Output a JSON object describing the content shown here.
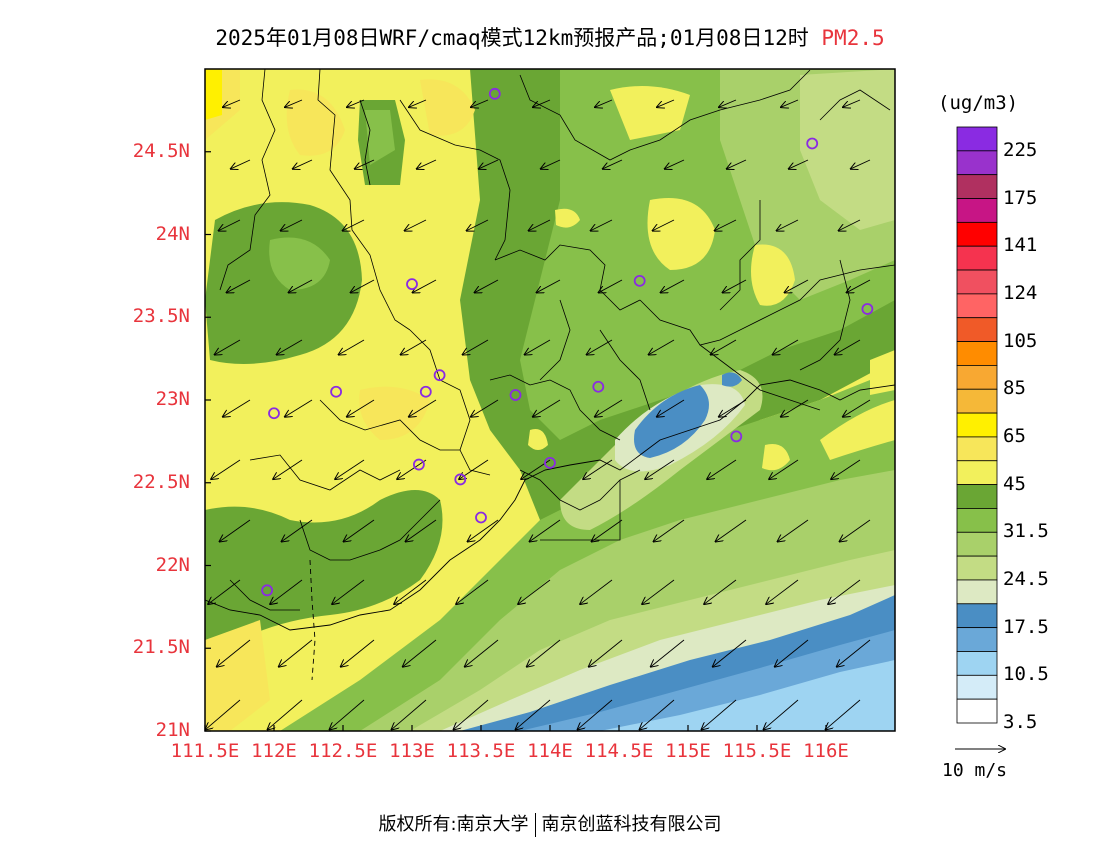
{
  "title": {
    "main": "2025年01月08日WRF/cmaq模式12km预报产品;01月08日12时",
    "pollutant": "PM2.5"
  },
  "axes": {
    "lat_ticks": [
      "24.5N",
      "24N",
      "23.5N",
      "23N",
      "22.5N",
      "22N",
      "21.5N",
      "21N"
    ],
    "lat_values": [
      24.5,
      24,
      23.5,
      23,
      22.5,
      22,
      21.5,
      21
    ],
    "lon_ticks": [
      "111.5E",
      "112E",
      "112.5E",
      "113E",
      "113.5E",
      "114E",
      "114.5E",
      "115E",
      "115.5E",
      "116E"
    ],
    "lon_values": [
      111.5,
      112,
      112.5,
      113,
      113.5,
      114,
      114.5,
      115,
      115.5,
      116
    ],
    "lat_range": [
      21,
      25.0
    ],
    "lon_range": [
      111.5,
      116.5
    ]
  },
  "colorbar": {
    "unit": "(ug/m3)",
    "labels": [
      "225",
      "175",
      "141",
      "124",
      "105",
      "85",
      "65",
      "45",
      "31.5",
      "24.5",
      "17.5",
      "10.5",
      "3.5"
    ],
    "colors": [
      "#8a2be2",
      "#9932cc",
      "#b03060",
      "#c71585",
      "#ff0000",
      "#f5334f",
      "#f05060",
      "#ff6464",
      "#f05a28",
      "#ff8c00",
      "#f8a832",
      "#f5b838",
      "#fff000",
      "#f7e65a",
      "#f2f05c",
      "#6aa634",
      "#87c04a",
      "#a9d06a",
      "#c3dc84",
      "#dde9c3",
      "#4a8ec4",
      "#6aa8d8",
      "#9ed4f2",
      "#d4ecf8",
      "#ffffff"
    ]
  },
  "wind_scale_label": "10 m/s",
  "stations": [
    {
      "lon": 113.6,
      "lat": 24.85
    },
    {
      "lon": 115.9,
      "lat": 24.55
    },
    {
      "lon": 113.0,
      "lat": 23.7
    },
    {
      "lon": 114.65,
      "lat": 23.72
    },
    {
      "lon": 116.3,
      "lat": 23.55
    },
    {
      "lon": 113.2,
      "lat": 23.15
    },
    {
      "lon": 112.45,
      "lat": 23.05
    },
    {
      "lon": 113.1,
      "lat": 23.05
    },
    {
      "lon": 113.75,
      "lat": 23.03
    },
    {
      "lon": 114.35,
      "lat": 23.08
    },
    {
      "lon": 112.0,
      "lat": 22.92
    },
    {
      "lon": 115.35,
      "lat": 22.78
    },
    {
      "lon": 113.05,
      "lat": 22.61
    },
    {
      "lon": 113.35,
      "lat": 22.52
    },
    {
      "lon": 114.0,
      "lat": 22.62
    },
    {
      "lon": 113.5,
      "lat": 22.29
    },
    {
      "lon": 111.95,
      "lat": 21.85
    }
  ],
  "copyright": {
    "prefix": "版权所有:",
    "org1": "南京大学",
    "org2": "南京创蓝科技有限公司"
  }
}
